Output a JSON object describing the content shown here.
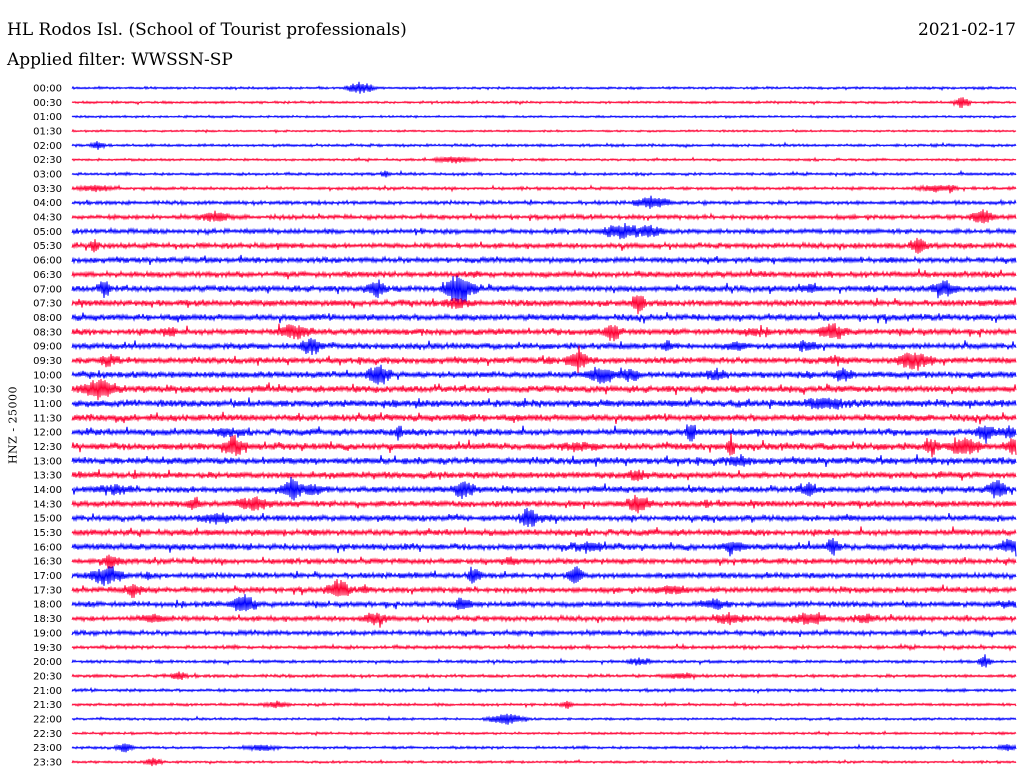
{
  "header": {
    "station": "HL Rodos Isl. (School of Tourist professionals)",
    "date": "2021-02-17",
    "filter": "Applied filter: WWSSN-SP"
  },
  "axis": {
    "channel_label": "HNZ - 25000"
  },
  "colors": {
    "trace_odd": "#0000ff",
    "trace_even": "#ff0033"
  },
  "chart_data": {
    "type": "line",
    "title": "",
    "ylabel": "HNZ - 25000",
    "row_labels": [
      "00:00",
      "00:30",
      "01:00",
      "01:30",
      "02:00",
      "02:30",
      "03:00",
      "03:30",
      "04:00",
      "04:30",
      "05:00",
      "05:30",
      "06:00",
      "06:30",
      "07:00",
      "07:30",
      "08:00",
      "08:30",
      "09:00",
      "09:30",
      "10:00",
      "10:30",
      "11:00",
      "11:30",
      "12:00",
      "12:30",
      "13:00",
      "13:30",
      "14:00",
      "14:30",
      "15:00",
      "15:30",
      "16:00",
      "16:30",
      "17:00",
      "17:30",
      "18:00",
      "18:30",
      "19:00",
      "19:30",
      "20:00",
      "20:30",
      "21:00",
      "21:30",
      "22:00",
      "22:30",
      "23:00",
      "23:30"
    ],
    "row_colors": [
      "blue",
      "red"
    ],
    "activity_level": [
      0.15,
      0.15,
      0.12,
      0.1,
      0.2,
      0.15,
      0.2,
      0.25,
      0.35,
      0.45,
      0.5,
      0.55,
      0.6,
      0.65,
      0.7,
      0.7,
      0.75,
      0.7,
      0.65,
      0.7,
      0.75,
      0.8,
      0.85,
      0.8,
      0.75,
      0.8,
      0.8,
      0.75,
      0.7,
      0.7,
      0.65,
      0.7,
      0.7,
      0.6,
      0.6,
      0.6,
      0.6,
      0.55,
      0.5,
      0.3,
      0.25,
      0.25,
      0.25,
      0.2,
      0.15,
      0.15,
      0.2,
      0.15
    ]
  }
}
